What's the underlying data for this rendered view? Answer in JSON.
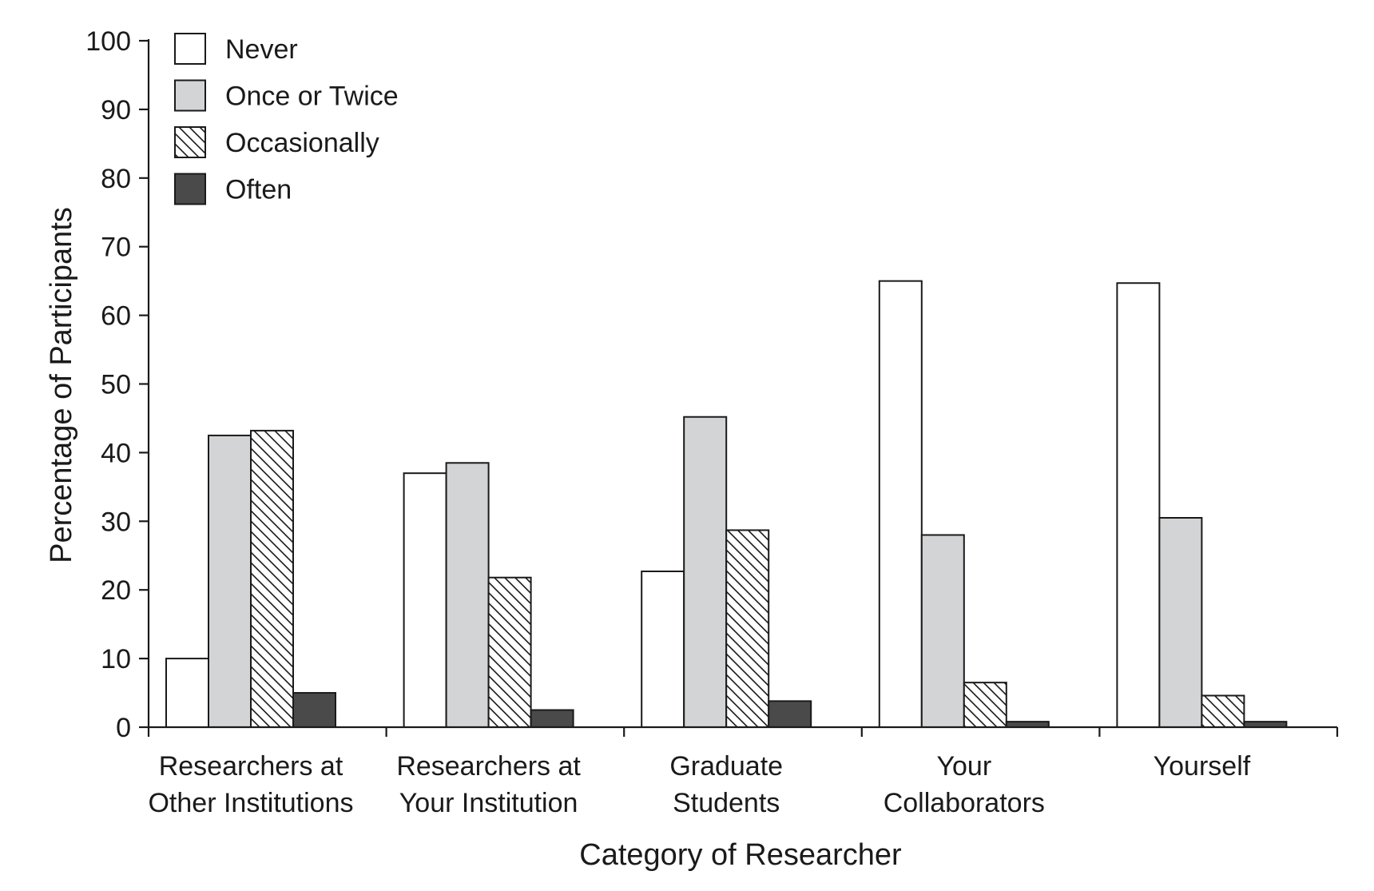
{
  "chart_data": {
    "type": "bar",
    "title": "",
    "xlabel": "Category of Researcher",
    "ylabel": "Percentage of Participants",
    "ylim": [
      0,
      100
    ],
    "yticks": [
      0,
      10,
      20,
      30,
      40,
      50,
      60,
      70,
      80,
      90,
      100
    ],
    "grid": false,
    "legend_position": "top-left",
    "categories": [
      [
        "Researchers at",
        "Other Institutions"
      ],
      [
        "Researchers at",
        "Your Institution"
      ],
      [
        "Graduate",
        "Students"
      ],
      [
        "Your",
        "Collaborators"
      ],
      [
        "Yourself"
      ]
    ],
    "series": [
      {
        "name": "Never",
        "fill": "#ffffff",
        "pattern": "none",
        "values": [
          10,
          37,
          22.7,
          65,
          64.7
        ]
      },
      {
        "name": "Once or Twice",
        "fill": "#d3d4d6",
        "pattern": "none",
        "values": [
          42.5,
          38.5,
          45.2,
          28,
          30.5
        ]
      },
      {
        "name": "Occasionally",
        "fill": "#ffffff",
        "pattern": "hatch",
        "values": [
          43.2,
          21.8,
          28.7,
          6.5,
          4.6
        ]
      },
      {
        "name": "Often",
        "fill": "#4a4a4a",
        "pattern": "none",
        "values": [
          5,
          2.5,
          3.8,
          0.8,
          0.8
        ]
      }
    ]
  }
}
